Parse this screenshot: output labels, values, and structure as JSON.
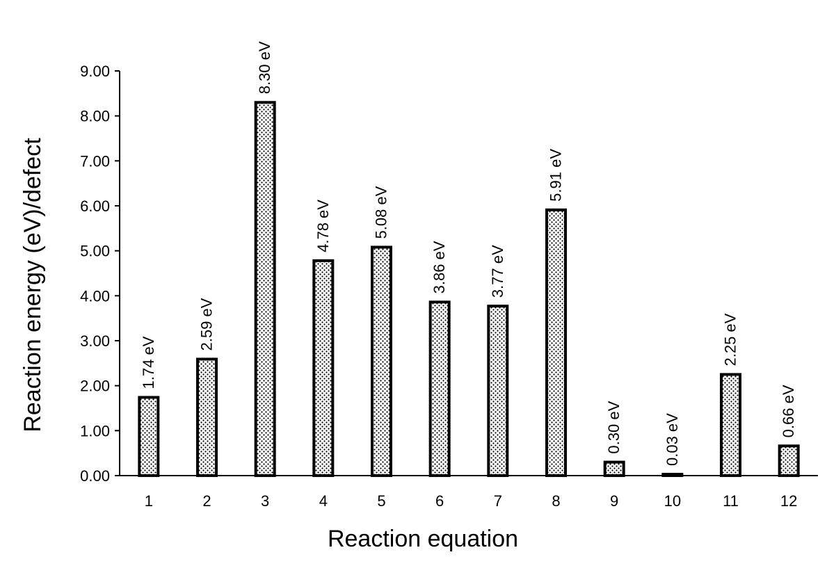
{
  "chart_data": {
    "type": "bar",
    "categories": [
      "1",
      "2",
      "3",
      "4",
      "5",
      "6",
      "7",
      "8",
      "9",
      "10",
      "11",
      "12"
    ],
    "values": [
      1.74,
      2.59,
      8.3,
      4.78,
      5.08,
      3.86,
      3.77,
      5.91,
      0.3,
      0.03,
      2.25,
      0.66
    ],
    "data_labels": [
      "1.74 eV",
      "2.59 eV",
      "8.30 eV",
      "4.78 eV",
      "5.08 eV",
      "3.86 eV",
      "3.77 eV",
      "5.91 eV",
      "0.30 eV",
      "0.03 eV",
      "2.25 eV",
      "0.66 eV"
    ],
    "xlabel": "Reaction equation",
    "ylabel": "Reaction energy (eV)/defect",
    "ylim": [
      0,
      9
    ],
    "yticks": [
      "0.00",
      "1.00",
      "2.00",
      "3.00",
      "4.00",
      "5.00",
      "6.00",
      "7.00",
      "8.00",
      "9.00"
    ],
    "grid": false,
    "bar_fill": "dotted pattern",
    "colors": {
      "bar_edge": "#000000",
      "bar_fill": "#ffffff",
      "dots": "#000000"
    }
  }
}
